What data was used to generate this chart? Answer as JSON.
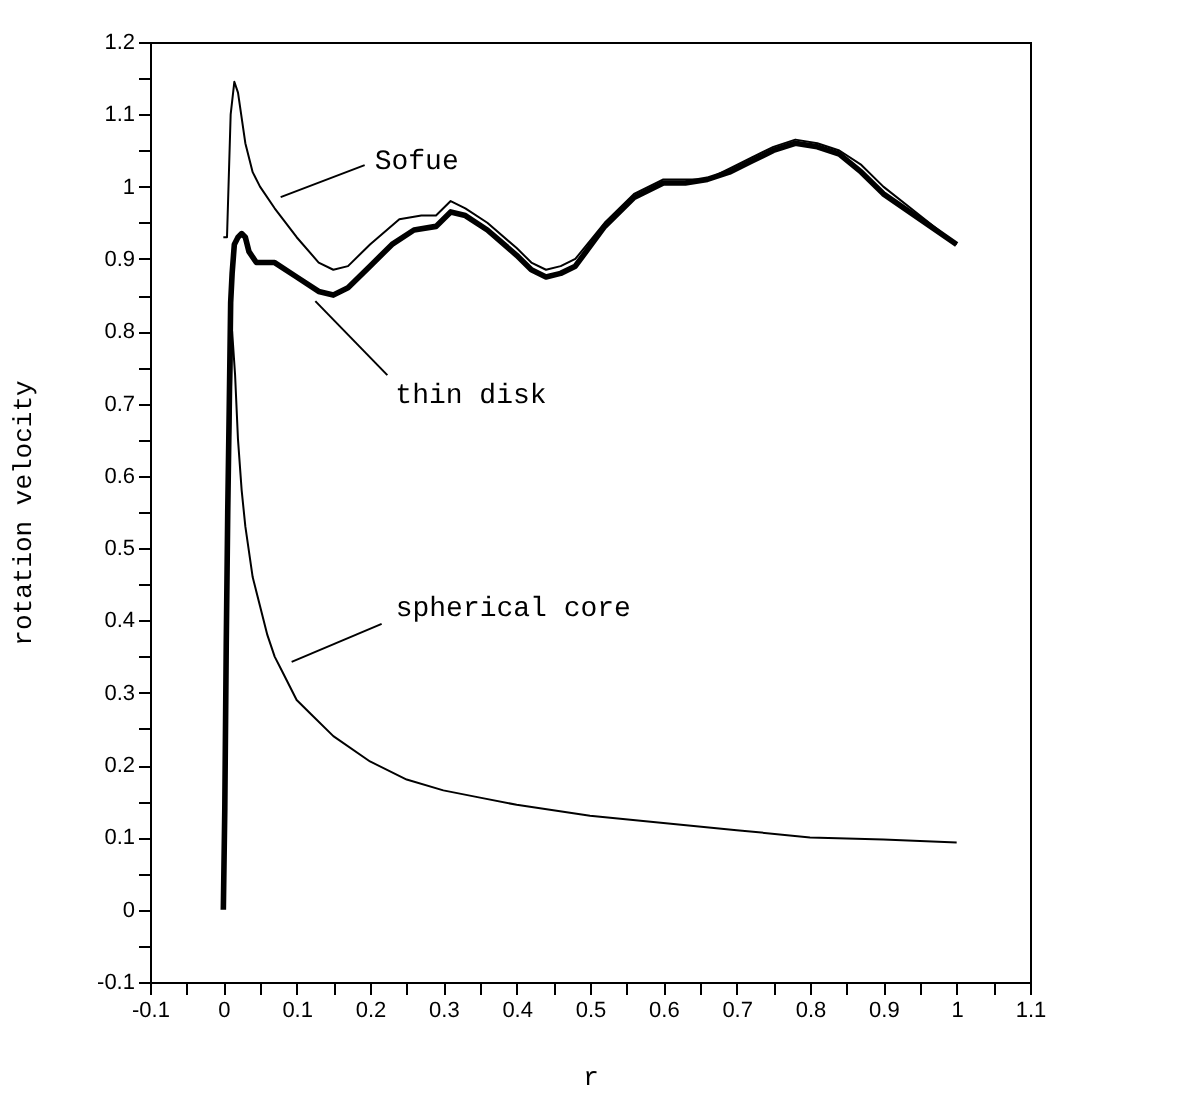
{
  "chart_data": {
    "type": "line",
    "xlabel": "r",
    "ylabel": "rotation velocity",
    "xlim": [
      -0.1,
      1.1
    ],
    "ylim": [
      -0.1,
      1.2
    ],
    "xticks": [
      -0.1,
      {
        "value": -0.05,
        "label": null
      },
      0,
      {
        "value": 0.05,
        "label": null
      },
      0.1,
      {
        "value": 0.15,
        "label": null
      },
      0.2,
      {
        "value": 0.25,
        "label": null
      },
      0.3,
      {
        "value": 0.35,
        "label": null
      },
      0.4,
      {
        "value": 0.45,
        "label": null
      },
      0.5,
      {
        "value": 0.55,
        "label": null
      },
      0.6,
      {
        "value": 0.65,
        "label": null
      },
      0.7,
      {
        "value": 0.75,
        "label": null
      },
      0.8,
      {
        "value": 0.85,
        "label": null
      },
      0.9,
      {
        "value": 0.95,
        "label": null
      },
      1,
      {
        "value": 1.05,
        "label": null
      },
      1.1
    ],
    "yticks": [
      -0.1,
      {
        "value": -0.05,
        "label": null
      },
      0,
      {
        "value": 0.05,
        "label": null
      },
      0.1,
      {
        "value": 0.15,
        "label": null
      },
      0.2,
      {
        "value": 0.25,
        "label": null
      },
      0.3,
      {
        "value": 0.35,
        "label": null
      },
      0.4,
      {
        "value": 0.45,
        "label": null
      },
      0.5,
      {
        "value": 0.55,
        "label": null
      },
      0.6,
      {
        "value": 0.65,
        "label": null
      },
      0.7,
      {
        "value": 0.75,
        "label": null
      },
      0.8,
      {
        "value": 0.85,
        "label": null
      },
      0.9,
      {
        "value": 0.95,
        "label": null
      },
      1,
      {
        "value": 1.05,
        "label": null
      },
      1.1,
      {
        "value": 1.15,
        "label": null
      },
      1.2
    ],
    "grid": false,
    "marker": "none",
    "line_style": "solid",
    "series": [
      {
        "color": "#000000",
        "x": [
          0,
          0.005,
          0.01,
          0.015,
          0.02,
          0.03,
          0.04,
          0.05,
          0.07,
          0.1,
          0.13,
          0.15,
          0.17,
          0.2,
          0.24,
          0.27,
          0.29,
          0.31,
          0.33,
          0.36,
          0.4,
          0.42,
          0.44,
          0.46,
          0.48,
          0.52,
          0.56,
          0.6,
          0.63,
          0.66,
          0.69,
          0.72,
          0.75,
          0.78,
          0.81,
          0.84,
          0.87,
          0.9,
          0.95,
          1.0
        ],
        "values": [
          0.93,
          0.93,
          1.1,
          1.145,
          1.13,
          1.06,
          1.02,
          1.0,
          0.97,
          0.93,
          0.895,
          0.885,
          0.89,
          0.92,
          0.955,
          0.96,
          0.96,
          0.98,
          0.97,
          0.95,
          0.915,
          0.895,
          0.885,
          0.89,
          0.9,
          0.95,
          0.99,
          1.01,
          1.01,
          1.01,
          1.025,
          1.04,
          1.055,
          1.065,
          1.06,
          1.05,
          1.03,
          1.0,
          0.96,
          0.92
        ]
      },
      {
        "color": "#000000",
        "x": [
          0,
          0.002,
          0.004,
          0.006,
          0.008,
          0.01,
          0.012,
          0.015,
          0.02,
          0.025,
          0.03,
          0.035,
          0.045,
          0.07,
          0.1,
          0.13,
          0.15,
          0.17,
          0.2,
          0.23,
          0.26,
          0.29,
          0.31,
          0.33,
          0.36,
          0.4,
          0.42,
          0.44,
          0.46,
          0.48,
          0.52,
          0.56,
          0.6,
          0.63,
          0.66,
          0.69,
          0.72,
          0.75,
          0.78,
          0.81,
          0.84,
          0.87,
          0.9,
          0.95,
          1.0
        ],
        "values": [
          0,
          0.14,
          0.37,
          0.55,
          0.69,
          0.84,
          0.88,
          0.92,
          0.93,
          0.935,
          0.93,
          0.91,
          0.895,
          0.895,
          0.875,
          0.855,
          0.85,
          0.86,
          0.89,
          0.92,
          0.94,
          0.945,
          0.965,
          0.96,
          0.94,
          0.905,
          0.885,
          0.875,
          0.88,
          0.89,
          0.945,
          0.985,
          1.005,
          1.005,
          1.01,
          1.02,
          1.035,
          1.05,
          1.06,
          1.055,
          1.045,
          1.02,
          0.99,
          0.955,
          0.92
        ]
      },
      {
        "color": "#000000",
        "x": [
          0.008,
          0.012,
          0.016,
          0.02,
          0.025,
          0.03,
          0.04,
          0.05,
          0.06,
          0.07,
          0.08,
          0.1,
          0.12,
          0.15,
          0.2,
          0.25,
          0.3,
          0.35,
          0.4,
          0.5,
          0.6,
          0.7,
          0.8,
          0.9,
          1.0
        ],
        "values": [
          0.6,
          0.8,
          0.74,
          0.65,
          0.58,
          0.53,
          0.46,
          0.42,
          0.38,
          0.35,
          0.33,
          0.29,
          0.27,
          0.24,
          0.205,
          0.18,
          0.165,
          0.155,
          0.145,
          0.13,
          0.12,
          0.11,
          0.1,
          0.097,
          0.093
        ]
      }
    ],
    "annotations": [
      {
        "text": "Sofue",
        "x": 0.07,
        "y": 0.98
      },
      {
        "text": "thin disk",
        "x": 0.12,
        "y": 0.85
      },
      {
        "text": "spherical core",
        "x": 0.085,
        "y": 0.34
      }
    ]
  }
}
